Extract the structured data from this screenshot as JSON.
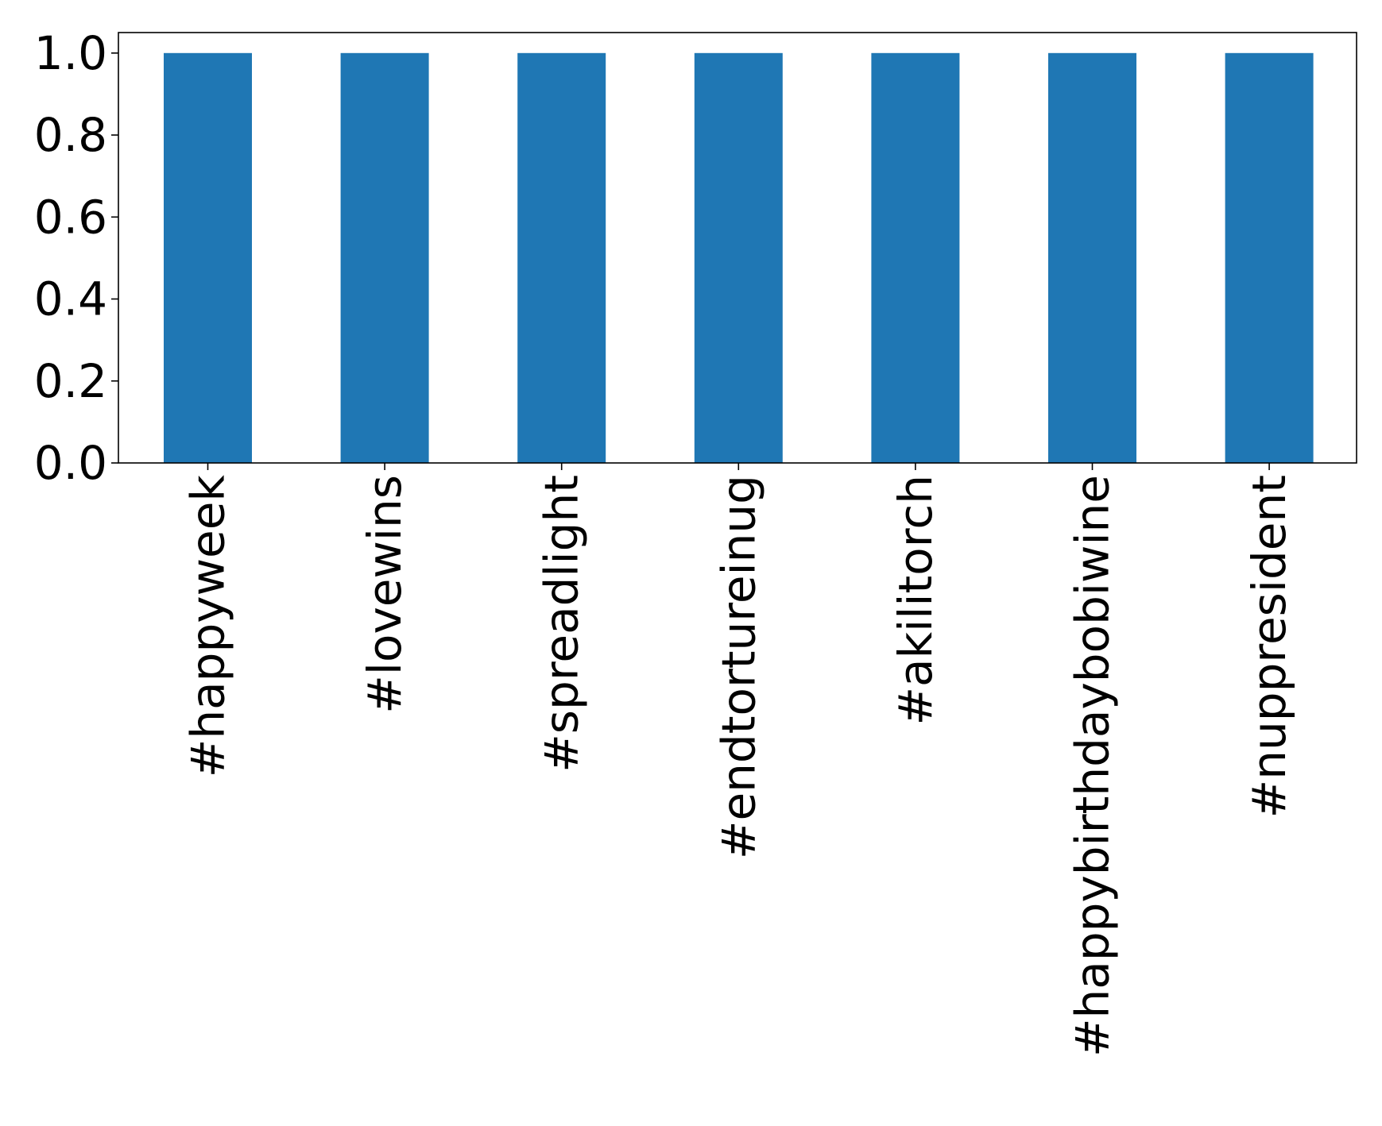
{
  "chart_data": {
    "type": "bar",
    "title": "",
    "xlabel": "",
    "ylabel": "",
    "categories": [
      "#happyweek",
      "#lovewins",
      "#spreadlight",
      "#endtortureinug",
      "#akilitorch",
      "#happybirthdaybobiwine",
      "#nuppresident"
    ],
    "values": [
      1.0,
      1.0,
      1.0,
      1.0,
      1.0,
      1.0,
      1.0
    ],
    "ylim": [
      0,
      1.05
    ],
    "yticks": [
      "0.0",
      "0.2",
      "0.4",
      "0.6",
      "0.8",
      "1.0"
    ],
    "ytick_values": [
      0.0,
      0.2,
      0.4,
      0.6,
      0.8,
      1.0
    ],
    "grid": false,
    "legend": "none",
    "colors": {
      "bar": "#1f77b4",
      "axis": "#000000",
      "background": "#ffffff"
    }
  }
}
